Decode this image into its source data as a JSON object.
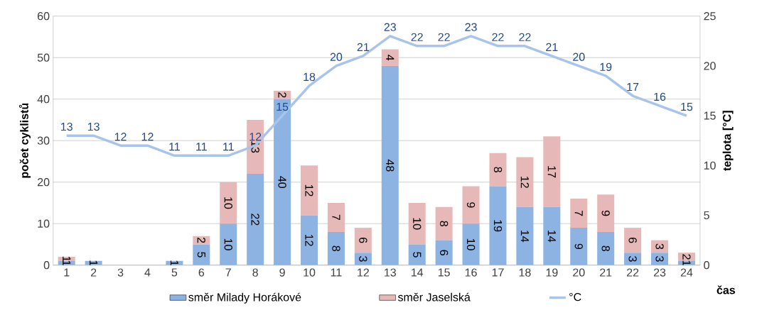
{
  "chart_data": {
    "type": "bar",
    "stacked": true,
    "xlabel": "čas",
    "ylabel": "počet cyklistů",
    "y2label": "teplota [°C]",
    "categories": [
      "1",
      "2",
      "3",
      "4",
      "5",
      "6",
      "7",
      "8",
      "9",
      "10",
      "11",
      "12",
      "13",
      "14",
      "15",
      "16",
      "17",
      "18",
      "19",
      "20",
      "21",
      "22",
      "23",
      "24"
    ],
    "series": [
      {
        "name": "směr Milady Horákové",
        "color": "#8db3e2",
        "values": [
          1,
          1,
          0,
          0,
          1,
          5,
          10,
          22,
          40,
          12,
          8,
          3,
          48,
          5,
          6,
          10,
          19,
          14,
          14,
          9,
          8,
          3,
          3,
          1
        ],
        "value_labels": [
          "1",
          "1",
          null,
          null,
          "1",
          "5",
          "10",
          "22",
          "40",
          "12",
          "8",
          "3",
          "48",
          "5",
          "6",
          "10",
          "19",
          "14",
          "14",
          "9",
          "8",
          "3",
          "3",
          "1"
        ]
      },
      {
        "name": "směr Jaselská",
        "color": "#e6b9b8",
        "values": [
          1,
          0,
          0,
          0,
          0,
          2,
          10,
          13,
          2,
          12,
          7,
          6,
          4,
          10,
          8,
          9,
          8,
          12,
          17,
          7,
          9,
          6,
          3,
          2
        ],
        "value_labels": [
          "1",
          null,
          null,
          null,
          null,
          "2",
          "10",
          "13",
          "2",
          "12",
          "7",
          "6",
          "4",
          "10",
          "8",
          "9",
          "8",
          "12",
          "17",
          "7",
          "9",
          "6",
          "3",
          "2"
        ]
      },
      {
        "name": "°C",
        "type": "line",
        "axis": "y2",
        "color": "#a9c4eb",
        "values": [
          13,
          13,
          12,
          12,
          11,
          11,
          11,
          12,
          15,
          18,
          20,
          21,
          23,
          22,
          22,
          23,
          22,
          22,
          21,
          20,
          19,
          17,
          16,
          15
        ],
        "value_labels": [
          "13",
          "13",
          "12",
          "12",
          "11",
          "11",
          "11",
          "12",
          "15",
          "18",
          "20",
          "21",
          "23",
          "22",
          "22",
          "23",
          "22",
          "22",
          "21",
          "20",
          "19",
          "17",
          "16",
          "15"
        ]
      }
    ],
    "ylim": [
      0,
      60
    ],
    "yticks": [
      0,
      10,
      20,
      30,
      40,
      50,
      60
    ],
    "y2lim": [
      0,
      25
    ],
    "y2ticks": [
      0,
      5,
      10,
      15,
      20,
      25
    ],
    "grid": "y",
    "legend": "bottom"
  }
}
